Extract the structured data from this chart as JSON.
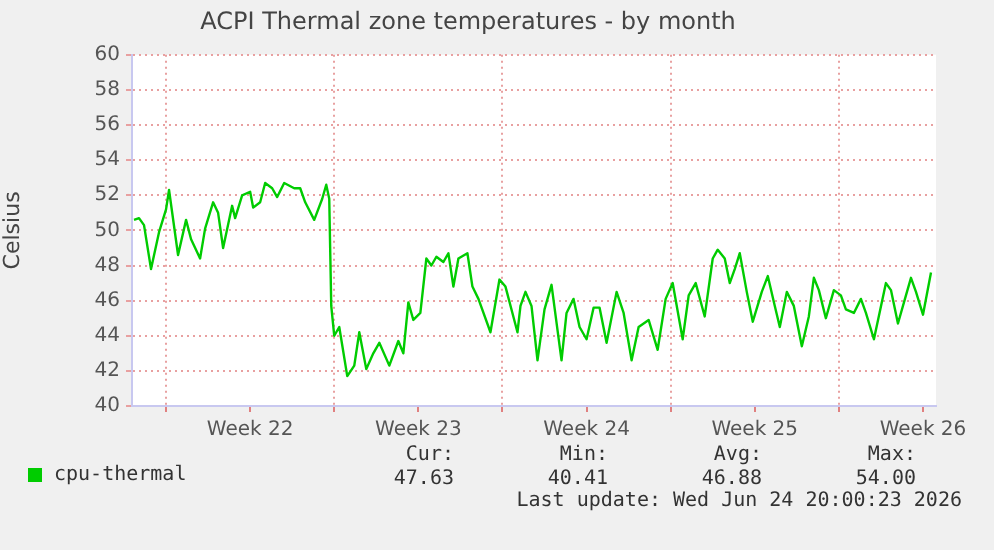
{
  "chart_data": {
    "type": "line",
    "title": "ACPI Thermal zone temperatures - by month",
    "ylabel": "Celsius",
    "xlim": [
      "2026-05-22T14:00",
      "2026-06-25T01:00"
    ],
    "xticks": [
      {
        "value": "2026-05-24",
        "label": null
      },
      {
        "value": "2026-05-27T12:00",
        "label": "Week 22"
      },
      {
        "value": "2026-05-31",
        "label": null
      },
      {
        "value": "2026-06-03T12:00",
        "label": "Week 23"
      },
      {
        "value": "2026-06-07",
        "label": null
      },
      {
        "value": "2026-06-10T12:00",
        "label": "Week 24"
      },
      {
        "value": "2026-06-14",
        "label": null
      },
      {
        "value": "2026-06-17T12:00",
        "label": "Week 25"
      },
      {
        "value": "2026-06-21",
        "label": null
      },
      {
        "value": "2026-06-24T12:00",
        "label": "Week 26"
      }
    ],
    "ylim": [
      40,
      60
    ],
    "yticks": [
      40,
      42,
      44,
      46,
      48,
      50,
      52,
      54,
      56,
      58,
      60
    ],
    "grid": true,
    "legend": "bottom",
    "marker": "none",
    "line_style": "solid",
    "series": [
      {
        "name": "cpu-thermal",
        "color": "#00cc00",
        "x": [
          "2026-05-22T16:00",
          "2026-05-22T21:00",
          "2026-05-23T02:00",
          "2026-05-23T09:00",
          "2026-05-23T17:00",
          "2026-05-24T00:00",
          "2026-05-24T03:00",
          "2026-05-24T12:00",
          "2026-05-24T20:00",
          "2026-05-25T01:00",
          "2026-05-25T10:00",
          "2026-05-25T15:00",
          "2026-05-25T23:00",
          "2026-05-26T04:00",
          "2026-05-26T09:00",
          "2026-05-26T18:00",
          "2026-05-26T21:00",
          "2026-05-27T04:00",
          "2026-05-27T12:00",
          "2026-05-27T15:00",
          "2026-05-27T22:00",
          "2026-05-28T03:00",
          "2026-05-28T10:00",
          "2026-05-28T15:00",
          "2026-05-28T22:00",
          "2026-05-29T08:00",
          "2026-05-29T14:00",
          "2026-05-29T19:00",
          "2026-05-30T04:00",
          "2026-05-30T12:00",
          "2026-05-30T16:00",
          "2026-05-30T19:00",
          "2026-05-30T21:00",
          "2026-05-31T00:00",
          "2026-05-31T05:00",
          "2026-05-31T13:00",
          "2026-05-31T20:00",
          "2026-06-01T01:00",
          "2026-06-01T08:00",
          "2026-06-01T15:00",
          "2026-06-01T21:00",
          "2026-06-02T07:00",
          "2026-06-02T16:00",
          "2026-06-02T21:00",
          "2026-06-03T02:00",
          "2026-06-03T07:00",
          "2026-06-03T14:00",
          "2026-06-03T20:00",
          "2026-06-04T01:00",
          "2026-06-04T06:00",
          "2026-06-04T13:00",
          "2026-06-04T18:00",
          "2026-06-04T23:00",
          "2026-06-05T04:00",
          "2026-06-05T13:00",
          "2026-06-05T18:00",
          "2026-06-06T00:00",
          "2026-06-06T12:00",
          "2026-06-06T21:00",
          "2026-06-07T03:00",
          "2026-06-07T15:00",
          "2026-06-07T18:00",
          "2026-06-07T23:00",
          "2026-06-08T05:00",
          "2026-06-08T11:00",
          "2026-06-08T18:00",
          "2026-06-09T01:00",
          "2026-06-09T11:00",
          "2026-06-09T16:00",
          "2026-06-09T23:00",
          "2026-06-10T05:00",
          "2026-06-10T12:00",
          "2026-06-10T19:00",
          "2026-06-11T01:00",
          "2026-06-11T08:00",
          "2026-06-11T18:00",
          "2026-06-12T01:00",
          "2026-06-12T09:00",
          "2026-06-12T16:00",
          "2026-06-13T02:00",
          "2026-06-13T11:00",
          "2026-06-13T19:00",
          "2026-06-14T02:00",
          "2026-06-14T12:00",
          "2026-06-14T18:00",
          "2026-06-15T01:00",
          "2026-06-15T10:00",
          "2026-06-15T18:00",
          "2026-06-15T23:00",
          "2026-06-16T06:00",
          "2026-06-16T11:00",
          "2026-06-16T16:00",
          "2026-06-16T21:00",
          "2026-06-17T04:00",
          "2026-06-17T10:00",
          "2026-06-17T19:00",
          "2026-06-18T01:00",
          "2026-06-18T08:00",
          "2026-06-18T13:00",
          "2026-06-18T20:00",
          "2026-06-19T03:00",
          "2026-06-19T11:00",
          "2026-06-19T18:00",
          "2026-06-19T23:00",
          "2026-06-20T04:00",
          "2026-06-20T11:00",
          "2026-06-20T19:00",
          "2026-06-21T02:00",
          "2026-06-21T07:00",
          "2026-06-21T15:00",
          "2026-06-21T22:00",
          "2026-06-22T03:00",
          "2026-06-22T11:00",
          "2026-06-22T23:00",
          "2026-06-23T04:00",
          "2026-06-23T11:00",
          "2026-06-23T18:00",
          "2026-06-24T00:00",
          "2026-06-24T05:00",
          "2026-06-24T12:00",
          "2026-06-24T20:00"
        ],
        "values": [
          50.6,
          50.7,
          50.3,
          47.8,
          49.9,
          51.2,
          52.3,
          48.6,
          50.6,
          49.5,
          48.4,
          50.1,
          51.6,
          51.0,
          49.0,
          51.4,
          50.7,
          52.0,
          52.2,
          51.3,
          51.6,
          52.7,
          52.4,
          51.9,
          52.7,
          52.4,
          52.4,
          51.6,
          50.6,
          51.8,
          52.6,
          51.8,
          45.7,
          44.0,
          44.5,
          41.7,
          42.3,
          44.2,
          42.1,
          43.0,
          43.6,
          42.3,
          43.7,
          43.0,
          45.9,
          44.9,
          45.3,
          48.4,
          48.0,
          48.5,
          48.2,
          48.7,
          46.8,
          48.4,
          48.7,
          46.8,
          46.1,
          44.2,
          47.2,
          46.8,
          44.2,
          45.7,
          46.5,
          45.7,
          42.6,
          45.5,
          46.9,
          42.6,
          45.3,
          46.1,
          44.5,
          43.8,
          45.6,
          45.6,
          43.6,
          46.5,
          45.3,
          42.6,
          44.5,
          44.9,
          43.2,
          46.1,
          47.0,
          43.8,
          46.3,
          47.0,
          45.1,
          48.4,
          48.9,
          48.4,
          47.0,
          47.8,
          48.7,
          46.5,
          44.8,
          46.5,
          47.4,
          45.7,
          44.5,
          46.5,
          45.7,
          43.4,
          45.1,
          47.3,
          46.6,
          45.0,
          46.6,
          46.3,
          45.5,
          45.3,
          46.1,
          45.3,
          43.8,
          47.0,
          46.6,
          44.7,
          46.1,
          47.3,
          46.5,
          45.2,
          47.6
        ]
      }
    ],
    "annotations": [
      "Cur:",
      "Min:",
      "Avg:",
      "Max:",
      "47.63",
      "40.41",
      "46.88",
      "54.00",
      "Last update: Wed Jun 24 20:00:23 2026"
    ]
  }
}
